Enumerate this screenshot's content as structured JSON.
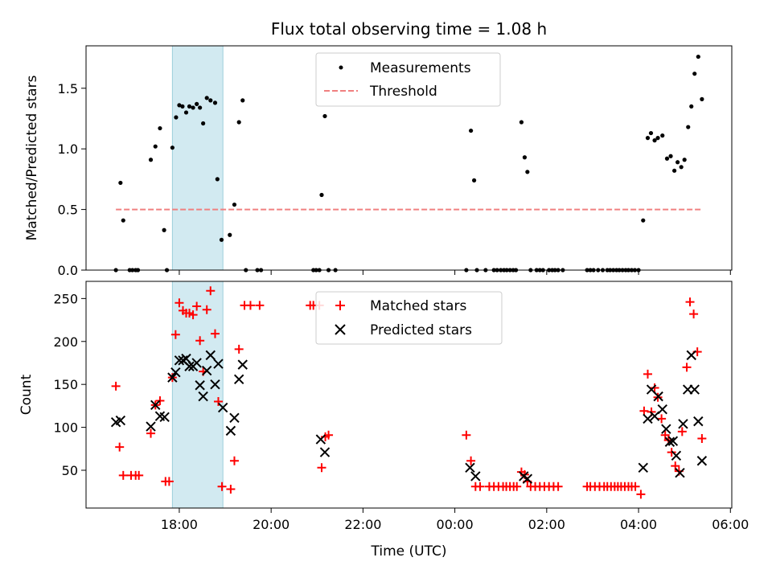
{
  "chart_data": [
    {
      "type": "scatter",
      "title": "Flux total observing time = 1.08 h",
      "ylabel": "Matched/Predicted stars",
      "xlabel": "",
      "x_unit": "hours UTC (continuing past midnight)",
      "xlim": [
        15.97,
        30.03
      ],
      "ylim": [
        0,
        1.85
      ],
      "xticks": [
        18,
        20,
        22,
        24,
        26,
        28,
        30
      ],
      "yticks": [
        0.0,
        0.5,
        1.0,
        1.5
      ],
      "yticklabels": [
        "0.0",
        "0.5",
        "1.0",
        "1.5"
      ],
      "shaded_span": [
        17.85,
        18.95
      ],
      "legend": {
        "placement": "top-center",
        "entries": [
          "Measurements",
          "Threshold"
        ]
      },
      "series": [
        {
          "name": "Measurements",
          "marker": "dot",
          "color": "#000000",
          "points": [
            [
              16.62,
              0
            ],
            [
              16.72,
              0.72
            ],
            [
              16.78,
              0.41
            ],
            [
              16.92,
              0
            ],
            [
              16.98,
              0
            ],
            [
              17.05,
              0
            ],
            [
              17.1,
              0
            ],
            [
              17.38,
              0.91
            ],
            [
              17.48,
              1.02
            ],
            [
              17.58,
              1.17
            ],
            [
              17.67,
              0.33
            ],
            [
              17.73,
              0
            ],
            [
              17.85,
              1.01
            ],
            [
              17.93,
              1.26
            ],
            [
              18.0,
              1.36
            ],
            [
              18.07,
              1.35
            ],
            [
              18.15,
              1.3
            ],
            [
              18.22,
              1.35
            ],
            [
              18.3,
              1.34
            ],
            [
              18.38,
              1.37
            ],
            [
              18.45,
              1.34
            ],
            [
              18.52,
              1.21
            ],
            [
              18.6,
              1.42
            ],
            [
              18.68,
              1.4
            ],
            [
              18.78,
              1.38
            ],
            [
              18.83,
              0.75
            ],
            [
              18.92,
              0.25
            ],
            [
              19.1,
              0.29
            ],
            [
              19.2,
              0.54
            ],
            [
              19.3,
              1.22
            ],
            [
              19.38,
              1.4
            ],
            [
              19.45,
              0
            ],
            [
              19.7,
              0
            ],
            [
              19.78,
              0
            ],
            [
              20.92,
              0
            ],
            [
              20.98,
              0
            ],
            [
              21.05,
              0
            ],
            [
              21.1,
              0.62
            ],
            [
              21.17,
              1.27
            ],
            [
              21.25,
              0
            ],
            [
              21.4,
              0
            ],
            [
              24.25,
              0
            ],
            [
              24.35,
              1.15
            ],
            [
              24.42,
              0.74
            ],
            [
              24.48,
              0
            ],
            [
              24.67,
              0
            ],
            [
              24.85,
              0
            ],
            [
              24.92,
              0
            ],
            [
              25.0,
              0
            ],
            [
              25.07,
              0
            ],
            [
              25.13,
              0
            ],
            [
              25.2,
              0
            ],
            [
              25.27,
              0
            ],
            [
              25.33,
              0
            ],
            [
              25.45,
              1.22
            ],
            [
              25.52,
              0.93
            ],
            [
              25.58,
              0.81
            ],
            [
              25.65,
              0
            ],
            [
              25.78,
              0
            ],
            [
              25.85,
              0
            ],
            [
              25.92,
              0
            ],
            [
              26.05,
              0
            ],
            [
              26.12,
              0
            ],
            [
              26.18,
              0
            ],
            [
              26.25,
              0
            ],
            [
              26.35,
              0
            ],
            [
              26.88,
              0
            ],
            [
              26.95,
              0
            ],
            [
              27.02,
              0
            ],
            [
              27.12,
              0
            ],
            [
              27.22,
              0
            ],
            [
              27.32,
              0
            ],
            [
              27.38,
              0
            ],
            [
              27.45,
              0
            ],
            [
              27.52,
              0
            ],
            [
              27.58,
              0
            ],
            [
              27.65,
              0
            ],
            [
              27.72,
              0
            ],
            [
              27.78,
              0
            ],
            [
              27.85,
              0
            ],
            [
              27.92,
              0
            ],
            [
              28.0,
              0
            ],
            [
              28.1,
              0.41
            ],
            [
              28.2,
              1.09
            ],
            [
              28.27,
              1.13
            ],
            [
              28.35,
              1.07
            ],
            [
              28.42,
              1.09
            ],
            [
              28.52,
              1.11
            ],
            [
              28.62,
              0.92
            ],
            [
              28.7,
              0.94
            ],
            [
              28.78,
              0.82
            ],
            [
              28.85,
              0.89
            ],
            [
              28.93,
              0.85
            ],
            [
              29.0,
              0.91
            ],
            [
              29.08,
              1.18
            ],
            [
              29.15,
              1.35
            ],
            [
              29.22,
              1.62
            ],
            [
              29.3,
              1.76
            ],
            [
              29.38,
              1.41
            ]
          ]
        },
        {
          "name": "Threshold",
          "style": "dashed-line",
          "color": "#f08080",
          "points": [
            [
              16.62,
              0.5
            ],
            [
              29.38,
              0.5
            ]
          ]
        }
      ]
    },
    {
      "type": "scatter",
      "title": "",
      "ylabel": "Count",
      "xlabel": "Time (UTC)",
      "x_unit": "hours UTC (continuing past midnight)",
      "xlim": [
        15.97,
        30.03
      ],
      "ylim": [
        6,
        270
      ],
      "xticks": [
        18,
        20,
        22,
        24,
        26,
        28,
        30
      ],
      "xticklabels": [
        "18:00",
        "20:00",
        "22:00",
        "00:00",
        "02:00",
        "04:00",
        "06:00"
      ],
      "yticks": [
        50,
        100,
        150,
        200,
        250
      ],
      "yticklabels": [
        "50",
        "100",
        "150",
        "200",
        "250"
      ],
      "shaded_span": [
        17.85,
        18.95
      ],
      "legend": {
        "placement": "top-center",
        "entries": [
          "Matched stars",
          "Predicted stars"
        ]
      },
      "series": [
        {
          "name": "Matched stars",
          "marker": "plus",
          "color": "#ff0000",
          "points": [
            [
              16.62,
              148
            ],
            [
              16.7,
              77
            ],
            [
              16.78,
              44
            ],
            [
              16.95,
              44
            ],
            [
              17.05,
              44
            ],
            [
              17.12,
              44
            ],
            [
              17.38,
              93
            ],
            [
              17.48,
              126
            ],
            [
              17.58,
              131
            ],
            [
              17.7,
              37
            ],
            [
              17.78,
              37
            ],
            [
              17.85,
              158
            ],
            [
              17.92,
              208
            ],
            [
              18.0,
              245
            ],
            [
              18.08,
              236
            ],
            [
              18.15,
              233
            ],
            [
              18.22,
              233
            ],
            [
              18.3,
              231
            ],
            [
              18.38,
              241
            ],
            [
              18.45,
              201
            ],
            [
              18.52,
              165
            ],
            [
              18.6,
              237
            ],
            [
              18.68,
              259
            ],
            [
              18.78,
              209
            ],
            [
              18.85,
              130
            ],
            [
              18.93,
              31
            ],
            [
              19.12,
              28
            ],
            [
              19.2,
              61
            ],
            [
              19.3,
              191
            ],
            [
              19.42,
              242
            ],
            [
              19.55,
              242
            ],
            [
              19.75,
              242
            ],
            [
              20.85,
              242
            ],
            [
              20.92,
              242
            ],
            [
              21.05,
              242
            ],
            [
              21.1,
              53
            ],
            [
              21.18,
              89
            ],
            [
              21.25,
              91
            ],
            [
              24.25,
              91
            ],
            [
              24.35,
              61
            ],
            [
              24.45,
              31
            ],
            [
              24.55,
              31
            ],
            [
              24.75,
              31
            ],
            [
              24.85,
              31
            ],
            [
              24.95,
              31
            ],
            [
              25.05,
              31
            ],
            [
              25.12,
              31
            ],
            [
              25.2,
              31
            ],
            [
              25.28,
              31
            ],
            [
              25.35,
              31
            ],
            [
              25.45,
              48
            ],
            [
              25.52,
              45
            ],
            [
              25.58,
              37
            ],
            [
              25.65,
              31
            ],
            [
              25.75,
              31
            ],
            [
              25.85,
              31
            ],
            [
              25.95,
              31
            ],
            [
              26.05,
              31
            ],
            [
              26.15,
              31
            ],
            [
              26.25,
              31
            ],
            [
              26.88,
              31
            ],
            [
              26.95,
              31
            ],
            [
              27.05,
              31
            ],
            [
              27.15,
              31
            ],
            [
              27.25,
              31
            ],
            [
              27.32,
              31
            ],
            [
              27.4,
              31
            ],
            [
              27.48,
              31
            ],
            [
              27.55,
              31
            ],
            [
              27.62,
              31
            ],
            [
              27.7,
              31
            ],
            [
              27.78,
              31
            ],
            [
              27.85,
              31
            ],
            [
              27.93,
              31
            ],
            [
              28.05,
              22
            ],
            [
              28.12,
              119
            ],
            [
              28.2,
              162
            ],
            [
              28.28,
              118
            ],
            [
              28.35,
              146
            ],
            [
              28.42,
              135
            ],
            [
              28.5,
              110
            ],
            [
              28.58,
              91
            ],
            [
              28.65,
              85
            ],
            [
              28.72,
              71
            ],
            [
              28.8,
              55
            ],
            [
              28.88,
              49
            ],
            [
              28.95,
              95
            ],
            [
              29.05,
              170
            ],
            [
              29.12,
              246
            ],
            [
              29.2,
              232
            ],
            [
              29.28,
              188
            ],
            [
              29.38,
              87
            ]
          ]
        },
        {
          "name": "Predicted stars",
          "marker": "x",
          "color": "#000000",
          "points": [
            [
              16.62,
              106
            ],
            [
              16.72,
              108
            ],
            [
              17.38,
              101
            ],
            [
              17.48,
              126
            ],
            [
              17.58,
              113
            ],
            [
              17.68,
              112
            ],
            [
              17.85,
              158
            ],
            [
              17.92,
              164
            ],
            [
              18.0,
              178
            ],
            [
              18.08,
              178
            ],
            [
              18.15,
              180
            ],
            [
              18.22,
              171
            ],
            [
              18.3,
              171
            ],
            [
              18.38,
              175
            ],
            [
              18.45,
              149
            ],
            [
              18.52,
              136
            ],
            [
              18.6,
              166
            ],
            [
              18.68,
              184
            ],
            [
              18.78,
              150
            ],
            [
              18.85,
              174
            ],
            [
              18.95,
              123
            ],
            [
              19.12,
              96
            ],
            [
              19.2,
              111
            ],
            [
              19.3,
              156
            ],
            [
              19.38,
              173
            ],
            [
              21.08,
              86
            ],
            [
              21.17,
              71
            ],
            [
              24.33,
              53
            ],
            [
              24.45,
              43
            ],
            [
              25.5,
              43
            ],
            [
              25.58,
              40
            ],
            [
              28.1,
              53
            ],
            [
              28.2,
              110
            ],
            [
              28.28,
              144
            ],
            [
              28.35,
              113
            ],
            [
              28.43,
              136
            ],
            [
              28.52,
              121
            ],
            [
              28.6,
              98
            ],
            [
              28.68,
              83
            ],
            [
              28.75,
              84
            ],
            [
              28.82,
              67
            ],
            [
              28.9,
              47
            ],
            [
              28.97,
              104
            ],
            [
              29.07,
              144
            ],
            [
              29.15,
              184
            ],
            [
              29.22,
              144
            ],
            [
              29.3,
              107
            ],
            [
              29.38,
              61
            ]
          ]
        }
      ]
    }
  ]
}
